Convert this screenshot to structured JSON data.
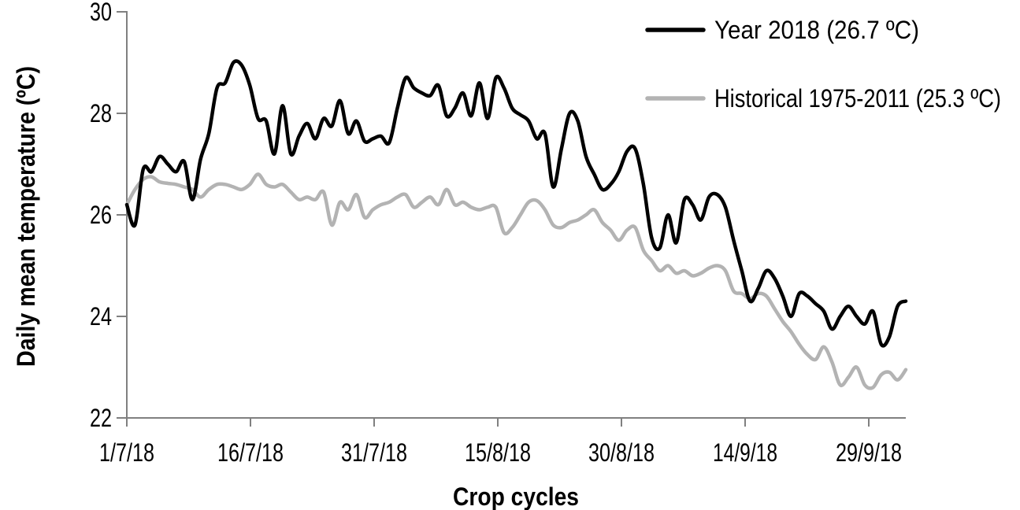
{
  "figure": {
    "background": "#ffffff",
    "axis_color": "#808080",
    "y_axis": {
      "title": "Daily mean temperature (ºC)",
      "ticks": [
        "30",
        "28",
        "26",
        "24",
        "22"
      ],
      "min": 22,
      "max": 30,
      "tick_step": 2
    },
    "x_axis": {
      "title": "Crop cycles",
      "ticks": [
        "1/7/18",
        "16/7/18",
        "31/7/18",
        "15/8/18",
        "30/8/18",
        "14/9/18",
        "29/9/18"
      ],
      "tick_interval_days": 15
    },
    "legend": {
      "position": "top-right",
      "items": [
        {
          "label": "Year 2018 (26.7 ºC)",
          "color": "#000000"
        },
        {
          "label": "Historical 1975-2011 (25.3 ºC)",
          "color": "#b3b3b3"
        }
      ]
    }
  },
  "chart_data": {
    "type": "line",
    "title": "",
    "xlabel": "Crop cycles",
    "ylabel": "Daily mean temperature (ºC)",
    "ylim": [
      22,
      30
    ],
    "y_tick_labels": [
      "30",
      "28",
      "26",
      "24",
      "22"
    ],
    "x_tick_labels": [
      "1/7/18",
      "16/7/18",
      "31/7/18",
      "15/8/18",
      "30/8/18",
      "14/9/18",
      "29/9/18"
    ],
    "x_description": "daily values from 1/7/18, one point per day, 96 days",
    "grid": false,
    "legend_position": "top-right",
    "smooth_lines": true,
    "series": [
      {
        "name": "Year 2018 (26.7 ºC)",
        "mean_label": "26.7 ºC",
        "color": "#000000",
        "values": [
          26.2,
          25.8,
          26.9,
          26.85,
          27.15,
          27.0,
          26.85,
          27.05,
          26.3,
          27.1,
          27.6,
          28.5,
          28.6,
          29.0,
          28.95,
          28.55,
          27.9,
          27.85,
          27.2,
          28.15,
          27.2,
          27.55,
          27.8,
          27.5,
          27.9,
          27.75,
          28.25,
          27.6,
          27.85,
          27.45,
          27.5,
          27.55,
          27.42,
          28.1,
          28.7,
          28.5,
          28.4,
          28.35,
          28.55,
          27.95,
          28.1,
          28.4,
          27.95,
          28.6,
          27.9,
          28.7,
          28.5,
          28.1,
          27.97,
          27.85,
          27.5,
          27.6,
          26.55,
          27.3,
          28.0,
          27.85,
          27.15,
          26.8,
          26.5,
          26.6,
          26.85,
          27.25,
          27.3,
          26.6,
          25.55,
          25.35,
          26.0,
          25.45,
          26.3,
          26.2,
          25.9,
          26.35,
          26.4,
          26.15,
          25.5,
          24.9,
          24.3,
          24.55,
          24.9,
          24.75,
          24.4,
          24.0,
          24.45,
          24.4,
          24.25,
          24.1,
          23.75,
          24.0,
          24.2,
          24.0,
          23.85,
          24.1,
          23.45,
          23.6,
          24.2,
          24.3
        ]
      },
      {
        "name": "Historical 1975-2011 (25.3 ºC)",
        "mean_label": "25.3 ºC",
        "color": "#b3b3b3",
        "values": [
          26.2,
          26.5,
          26.7,
          26.75,
          26.65,
          26.62,
          26.6,
          26.55,
          26.5,
          26.35,
          26.5,
          26.6,
          26.6,
          26.55,
          26.5,
          26.6,
          26.8,
          26.6,
          26.55,
          26.6,
          26.45,
          26.3,
          26.35,
          26.3,
          26.45,
          25.8,
          26.25,
          26.1,
          26.4,
          25.95,
          26.1,
          26.2,
          26.25,
          26.35,
          26.4,
          26.15,
          26.25,
          26.35,
          26.2,
          26.5,
          26.2,
          26.25,
          26.15,
          26.1,
          26.15,
          26.15,
          25.65,
          25.75,
          26.0,
          26.25,
          26.28,
          26.1,
          25.8,
          25.75,
          25.85,
          25.9,
          26.0,
          26.1,
          25.85,
          25.7,
          25.5,
          25.7,
          25.75,
          25.3,
          25.1,
          24.9,
          25.0,
          24.85,
          24.9,
          24.8,
          24.85,
          24.95,
          25.0,
          24.9,
          24.5,
          24.45,
          24.35,
          24.45,
          24.4,
          24.15,
          23.9,
          23.7,
          23.45,
          23.25,
          23.15,
          23.4,
          23.1,
          22.65,
          22.8,
          23.0,
          22.65,
          22.6,
          22.85,
          22.9,
          22.75,
          22.95
        ]
      }
    ]
  }
}
